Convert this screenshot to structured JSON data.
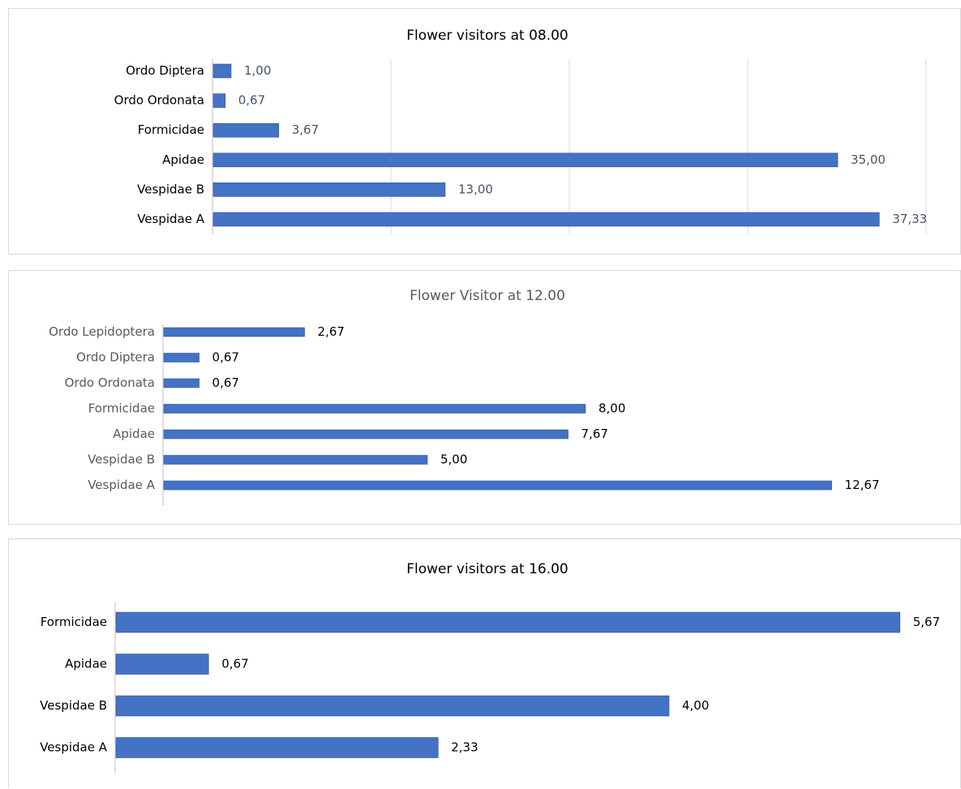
{
  "colors": {
    "bar": "#4472c4",
    "bar_edge": "#2f5597",
    "gridline": "#d9d9d9",
    "axis": "#bfbfbf",
    "title_dark": "#000000",
    "title_grey": "#595959",
    "value_text_blue": "#44546a",
    "text_dark": "#000000",
    "text_grey": "#595959"
  },
  "chart_data": [
    {
      "type": "bar",
      "orientation": "horizontal",
      "title": "Flower visitors at 08.00",
      "categories": [
        "Ordo Diptera",
        "Ordo Ordonata",
        "Formicidae",
        "Apidae",
        "Vespidae B",
        "Vespidae A"
      ],
      "values": [
        1.0,
        0.67,
        3.67,
        35.0,
        13.0,
        37.33
      ],
      "data_labels": [
        "1,00",
        "0,67",
        "3,67",
        "35,00",
        "13,00",
        "37,33"
      ],
      "xlim": [
        0,
        40
      ],
      "grid": true,
      "legend": "none"
    },
    {
      "type": "bar",
      "orientation": "horizontal",
      "title": "Flower Visitor at 12.00",
      "categories": [
        "Ordo Lepidoptera",
        "Ordo Diptera",
        "Ordo Ordonata",
        "Formicidae",
        "Apidae",
        "Vespidae B",
        "Vespidae A"
      ],
      "values": [
        2.67,
        0.67,
        0.67,
        8.0,
        7.67,
        5.0,
        12.67
      ],
      "data_labels": [
        "2,67",
        "0,67",
        "0,67",
        "8,00",
        "7,67",
        "5,00",
        "12,67"
      ],
      "xlim": [
        0,
        14
      ],
      "grid": false,
      "legend": "none"
    },
    {
      "type": "bar",
      "orientation": "horizontal",
      "title": "Flower visitors at 16.00",
      "categories": [
        "Formicidae",
        "Apidae",
        "Vespidae B",
        "Vespidae A"
      ],
      "values": [
        5.67,
        0.67,
        4.0,
        2.33
      ],
      "data_labels": [
        "5,67",
        "0,67",
        "4,00",
        "2,33"
      ],
      "xlim": [
        0,
        6
      ],
      "grid": false,
      "legend": "none"
    }
  ]
}
